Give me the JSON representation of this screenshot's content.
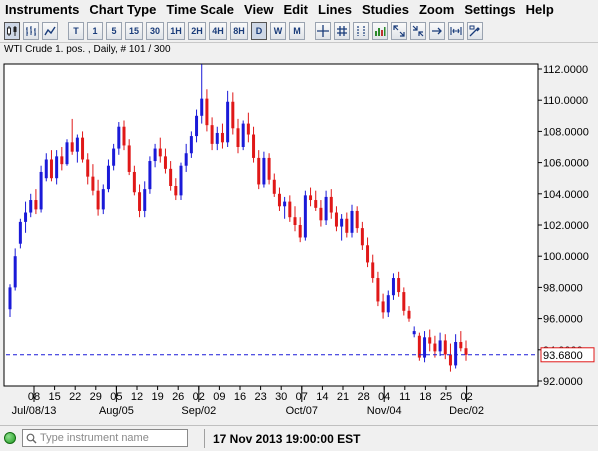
{
  "menu": [
    "Instruments",
    "Chart Type",
    "Time Scale",
    "View",
    "Edit",
    "Lines",
    "Studies",
    "Zoom",
    "Settings",
    "Help"
  ],
  "toolbar": {
    "timeframes": [
      "T",
      "1",
      "5",
      "15",
      "30",
      "1H",
      "2H",
      "4H",
      "8H",
      "D",
      "W",
      "M"
    ],
    "selected_timeframe": "D"
  },
  "chart_header": "WTI Crude 1. pos. , Daily, # 101 / 300",
  "status": {
    "instrument_placeholder": "Type instrument name",
    "datetime": "17 Nov 2013 19:00:00 EST"
  },
  "colors": {
    "up": "#1a1ad8",
    "down": "#e01818",
    "guide": "#1a1ad8",
    "background": "#ffffff"
  },
  "chart_data": {
    "type": "candlestick",
    "instrument": "WTI Crude 1. pos.",
    "timeframe": "Daily",
    "yticks": [
      "92.0000",
      "94.0000",
      "96.0000",
      "98.0000",
      "100.0000",
      "102.0000",
      "104.0000",
      "106.0000",
      "108.0000",
      "110.0000",
      "112.0000"
    ],
    "ylim": [
      92,
      112.7
    ],
    "xticks": [
      "08",
      "15",
      "22",
      "29",
      "05",
      "12",
      "19",
      "26",
      "02",
      "09",
      "16",
      "23",
      "30",
      "07",
      "14",
      "21",
      "28",
      "04",
      "11",
      "18",
      "25",
      "02"
    ],
    "month_labels": [
      {
        "label": "Jul/08/13",
        "tick": 0
      },
      {
        "label": "Aug/05",
        "tick": 4
      },
      {
        "label": "Sep/02",
        "tick": 8
      },
      {
        "label": "Oct/07",
        "tick": 13
      },
      {
        "label": "Nov/04",
        "tick": 17
      },
      {
        "label": "Dec/02",
        "tick": 21
      }
    ],
    "current_price": "93.6800",
    "current_value": 93.68,
    "candles": [
      [
        96.6,
        98.2,
        96.1,
        98.0
      ],
      [
        98.0,
        100.5,
        97.8,
        100.0
      ],
      [
        100.8,
        102.4,
        100.5,
        102.2
      ],
      [
        102.2,
        103.5,
        101.5,
        102.8
      ],
      [
        102.8,
        104.0,
        102.5,
        103.6
      ],
      [
        103.6,
        104.3,
        102.7,
        103.0
      ],
      [
        103.0,
        105.8,
        102.8,
        105.4
      ],
      [
        105.0,
        106.6,
        104.8,
        106.2
      ],
      [
        106.2,
        106.8,
        104.8,
        105.0
      ],
      [
        105.0,
        106.8,
        104.6,
        106.4
      ],
      [
        106.4,
        107.0,
        105.5,
        105.9
      ],
      [
        105.9,
        107.5,
        105.8,
        107.3
      ],
      [
        107.3,
        108.8,
        106.5,
        106.7
      ],
      [
        106.7,
        107.8,
        106.0,
        107.6
      ],
      [
        107.6,
        108.0,
        106.0,
        106.2
      ],
      [
        106.2,
        106.6,
        104.6,
        105.1
      ],
      [
        105.1,
        105.9,
        103.9,
        104.2
      ],
      [
        104.2,
        104.9,
        102.6,
        103.0
      ],
      [
        103.0,
        104.6,
        102.7,
        104.3
      ],
      [
        104.3,
        106.2,
        104.1,
        105.8
      ],
      [
        105.8,
        107.2,
        105.5,
        106.9
      ],
      [
        106.9,
        108.6,
        106.5,
        108.3
      ],
      [
        108.3,
        108.7,
        106.8,
        107.1
      ],
      [
        107.1,
        107.5,
        105.2,
        105.4
      ],
      [
        105.4,
        105.8,
        103.9,
        104.1
      ],
      [
        104.1,
        104.6,
        102.5,
        102.9
      ],
      [
        102.9,
        104.8,
        102.5,
        104.3
      ],
      [
        104.3,
        106.4,
        104.0,
        106.1
      ],
      [
        106.1,
        107.2,
        105.7,
        106.9
      ],
      [
        106.9,
        107.6,
        106.0,
        106.4
      ],
      [
        106.4,
        106.9,
        105.3,
        105.6
      ],
      [
        105.6,
        106.1,
        104.2,
        104.5
      ],
      [
        104.5,
        105.0,
        103.6,
        103.9
      ],
      [
        103.9,
        106.0,
        103.6,
        105.8
      ],
      [
        105.8,
        107.2,
        105.4,
        106.6
      ],
      [
        106.6,
        108.0,
        106.3,
        107.7
      ],
      [
        107.7,
        109.4,
        107.3,
        109.0
      ],
      [
        109.0,
        112.3,
        108.5,
        110.1
      ],
      [
        110.1,
        110.7,
        108.0,
        108.4
      ],
      [
        108.4,
        108.9,
        106.8,
        107.2
      ],
      [
        107.2,
        108.3,
        106.8,
        107.9
      ],
      [
        107.9,
        108.5,
        106.9,
        107.3
      ],
      [
        107.3,
        110.6,
        107.0,
        109.9
      ],
      [
        109.9,
        110.5,
        107.8,
        108.2
      ],
      [
        108.2,
        108.8,
        106.6,
        107.0
      ],
      [
        107.0,
        108.7,
        106.8,
        108.5
      ],
      [
        108.5,
        109.2,
        107.3,
        107.8
      ],
      [
        107.8,
        108.3,
        106.0,
        106.3
      ],
      [
        106.3,
        106.8,
        104.3,
        104.6
      ],
      [
        104.6,
        106.7,
        104.4,
        106.3
      ],
      [
        106.3,
        106.6,
        104.6,
        104.9
      ],
      [
        104.9,
        105.3,
        103.8,
        104.0
      ],
      [
        104.0,
        104.4,
        102.9,
        103.2
      ],
      [
        103.2,
        103.8,
        102.4,
        103.5
      ],
      [
        103.5,
        103.9,
        102.2,
        102.5
      ],
      [
        102.5,
        103.2,
        101.6,
        102.0
      ],
      [
        102.0,
        102.5,
        100.9,
        101.2
      ],
      [
        101.2,
        104.2,
        101.0,
        103.9
      ],
      [
        103.9,
        104.4,
        103.2,
        103.6
      ],
      [
        103.6,
        104.2,
        102.9,
        103.1
      ],
      [
        103.1,
        103.6,
        101.9,
        102.3
      ],
      [
        102.3,
        104.2,
        102.0,
        103.8
      ],
      [
        103.8,
        104.3,
        102.4,
        102.8
      ],
      [
        102.8,
        103.2,
        101.6,
        101.9
      ],
      [
        101.9,
        102.7,
        101.0,
        102.4
      ],
      [
        102.4,
        102.8,
        101.2,
        101.5
      ],
      [
        101.5,
        103.3,
        101.2,
        102.9
      ],
      [
        102.9,
        103.2,
        101.5,
        101.8
      ],
      [
        101.8,
        102.2,
        100.4,
        100.7
      ],
      [
        100.7,
        101.2,
        99.3,
        99.6
      ],
      [
        99.6,
        100.1,
        98.3,
        98.6
      ],
      [
        98.6,
        99.0,
        96.8,
        97.1
      ],
      [
        97.1,
        97.6,
        96.0,
        96.4
      ],
      [
        96.4,
        97.8,
        96.1,
        97.5
      ],
      [
        97.5,
        98.9,
        97.2,
        98.6
      ],
      [
        98.6,
        99.0,
        97.4,
        97.7
      ],
      [
        97.7,
        98.0,
        96.2,
        96.5
      ],
      [
        96.5,
        96.8,
        95.8,
        96.0
      ],
      [
        95.0,
        95.5,
        94.8,
        95.2
      ],
      [
        94.9,
        95.1,
        93.3,
        93.5
      ],
      [
        93.5,
        95.2,
        93.2,
        94.8
      ],
      [
        94.8,
        95.3,
        93.9,
        94.4
      ],
      [
        94.4,
        94.9,
        93.5,
        93.9
      ],
      [
        93.9,
        95.1,
        93.6,
        94.6
      ],
      [
        94.6,
        95.0,
        93.4,
        93.7
      ],
      [
        93.7,
        94.4,
        92.6,
        93.0
      ],
      [
        93.0,
        95.0,
        92.8,
        94.5
      ],
      [
        94.5,
        95.2,
        93.9,
        94.1
      ],
      [
        94.1,
        94.6,
        93.3,
        93.68
      ]
    ]
  }
}
